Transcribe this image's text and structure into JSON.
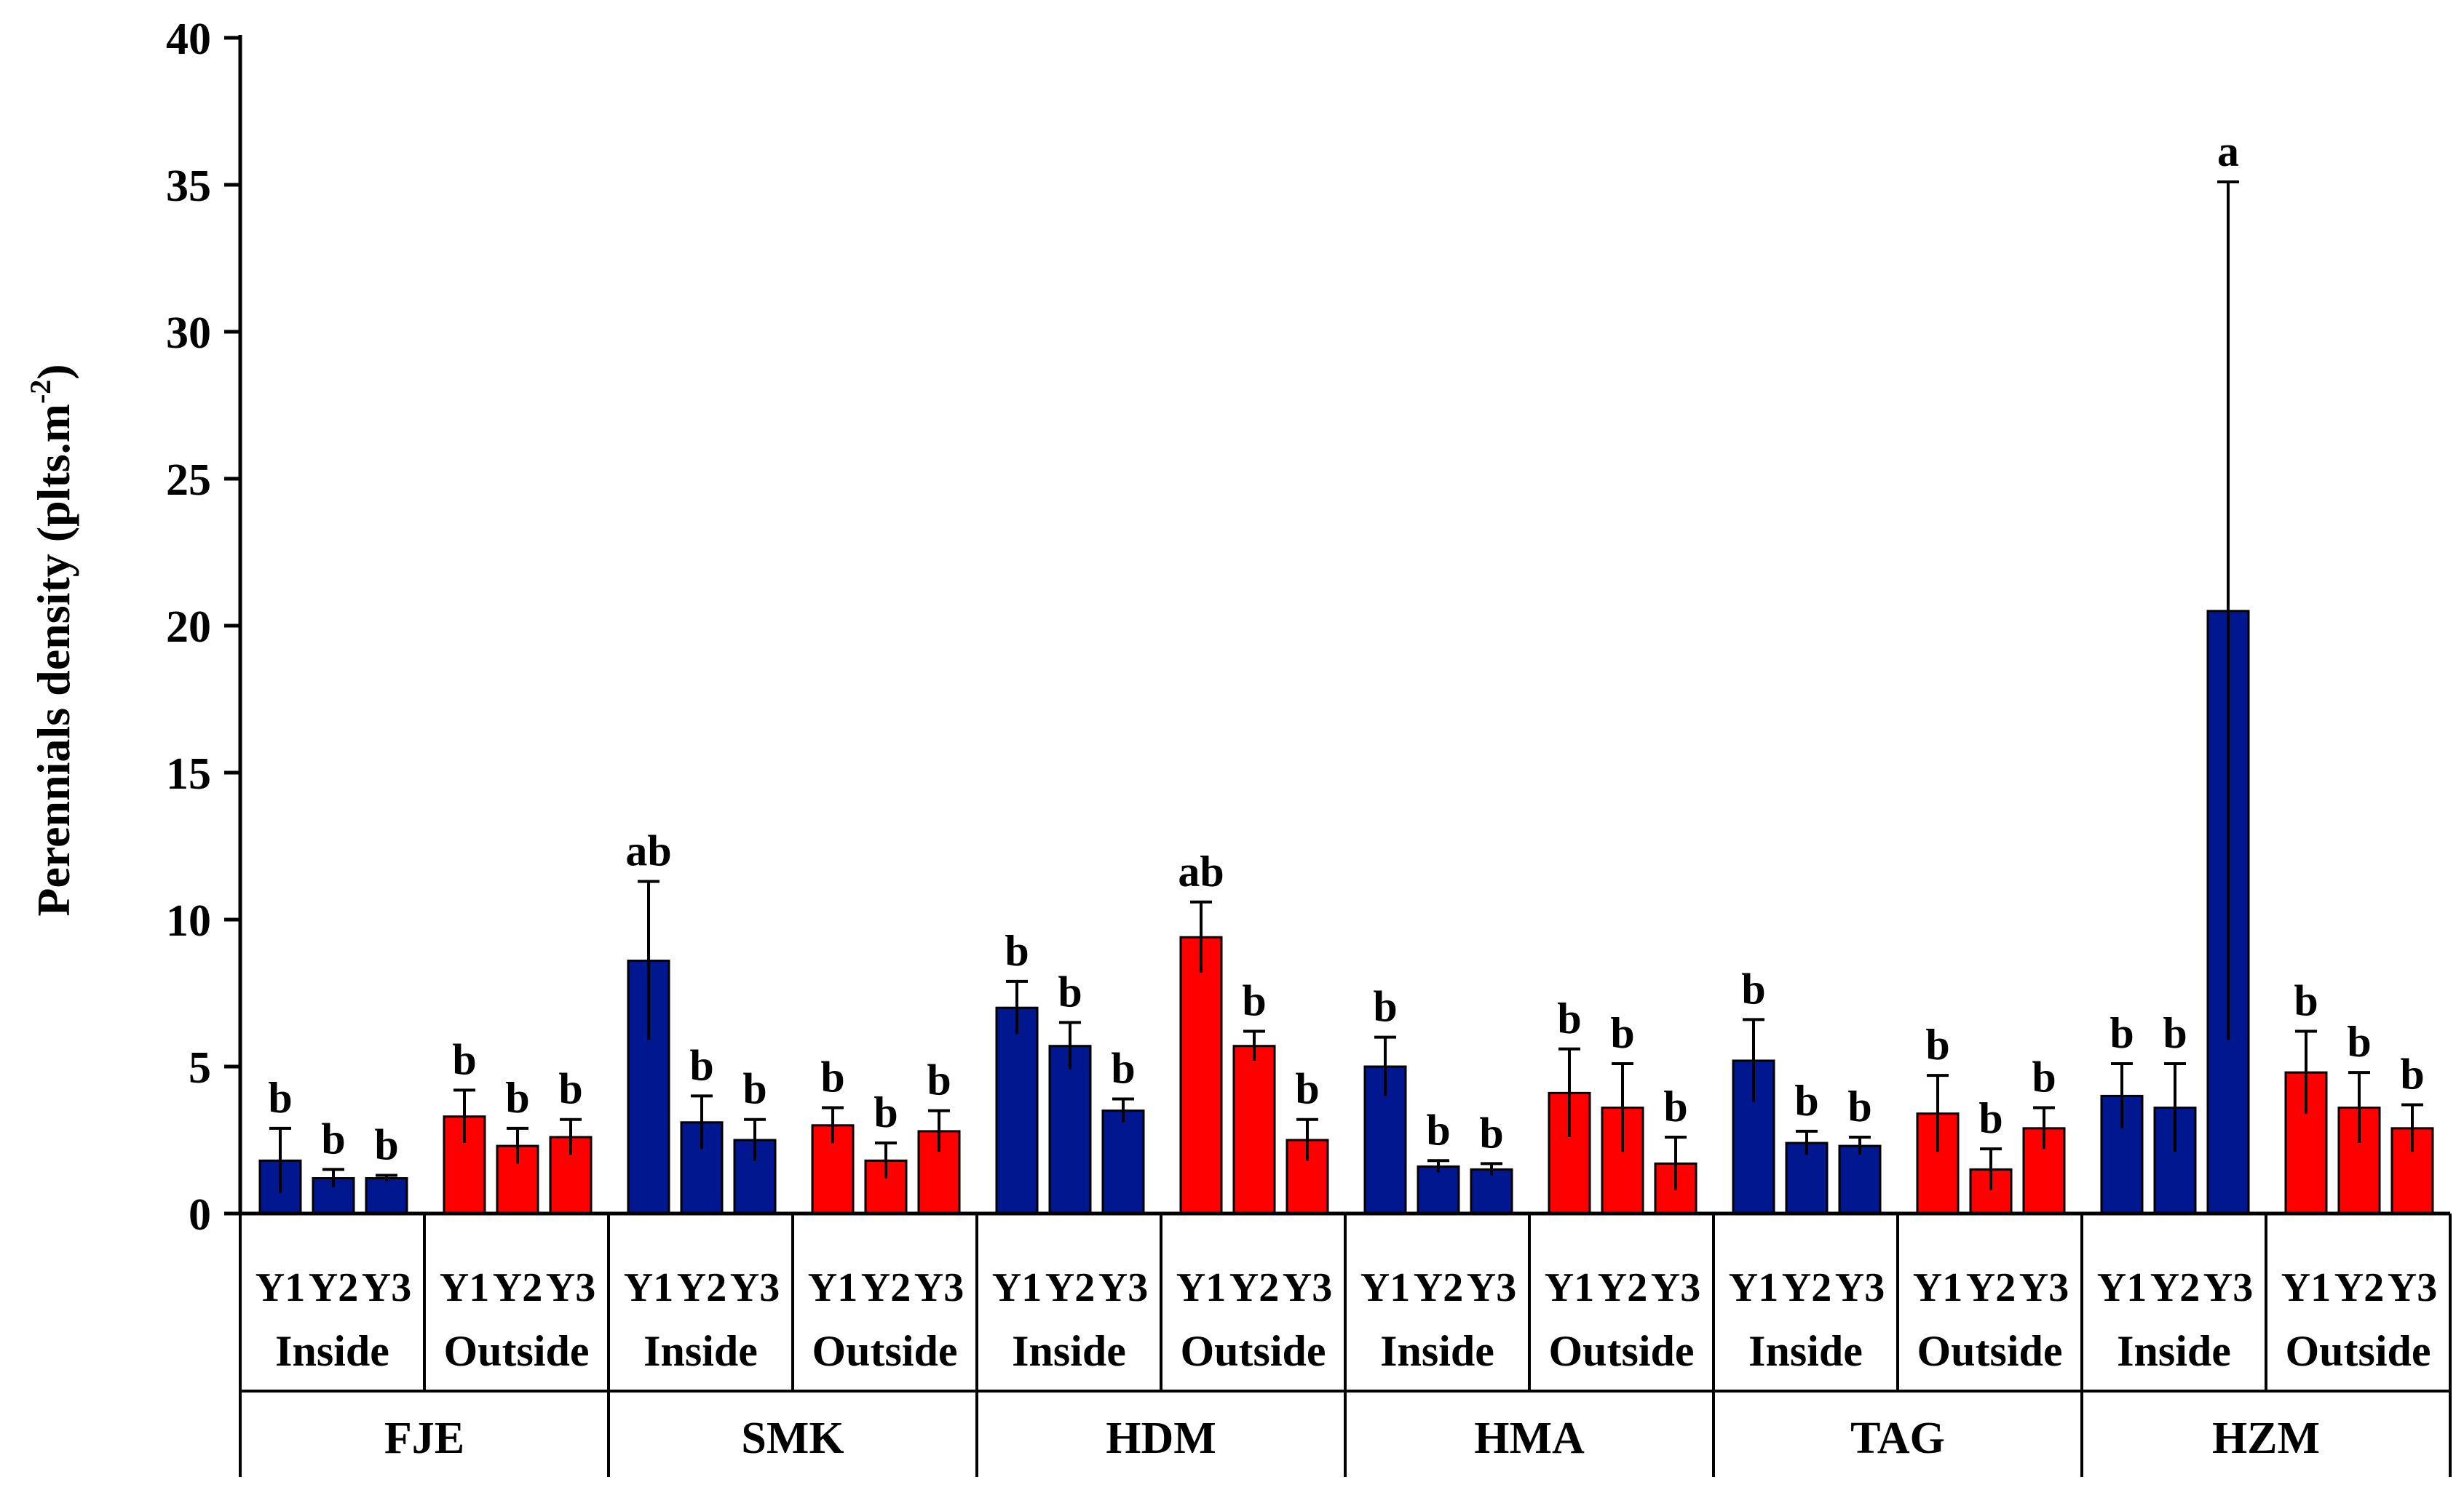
{
  "colors": {
    "inside": "#00178f",
    "outside": "#ff0000",
    "axis": "#000000",
    "error": "#000000"
  },
  "chart_data": {
    "type": "bar",
    "ylabel": "Perennials density (plts.m",
    "ylabel_sup": "-2",
    "ylabel_close": ")",
    "ylim": [
      0,
      40
    ],
    "yticks": [
      "0",
      "5",
      "10",
      "15",
      "20",
      "25",
      "30",
      "35",
      "40"
    ],
    "groups": [
      {
        "name": "FJE",
        "subgroups": [
          {
            "name": "Inside",
            "bars": [
              {
                "year": "Y1",
                "value": 1.8,
                "err": 1.1,
                "letter": "b"
              },
              {
                "year": "Y2",
                "value": 1.2,
                "err": 0.3,
                "letter": "b"
              },
              {
                "year": "Y3",
                "value": 1.2,
                "err": 0.1,
                "letter": "b"
              }
            ]
          },
          {
            "name": "Outside",
            "bars": [
              {
                "year": "Y1",
                "value": 3.3,
                "err": 0.9,
                "letter": "b"
              },
              {
                "year": "Y2",
                "value": 2.3,
                "err": 0.6,
                "letter": "b"
              },
              {
                "year": "Y3",
                "value": 2.6,
                "err": 0.6,
                "letter": "b"
              }
            ]
          }
        ]
      },
      {
        "name": "SMK",
        "subgroups": [
          {
            "name": "Inside",
            "bars": [
              {
                "year": "Y1",
                "value": 8.6,
                "err": 2.7,
                "letter": "ab"
              },
              {
                "year": "Y2",
                "value": 3.1,
                "err": 0.9,
                "letter": "b"
              },
              {
                "year": "Y3",
                "value": 2.5,
                "err": 0.7,
                "letter": "b"
              }
            ]
          },
          {
            "name": "Outside",
            "bars": [
              {
                "year": "Y1",
                "value": 3.0,
                "err": 0.6,
                "letter": "b"
              },
              {
                "year": "Y2",
                "value": 1.8,
                "err": 0.6,
                "letter": "b"
              },
              {
                "year": "Y3",
                "value": 2.8,
                "err": 0.7,
                "letter": "b"
              }
            ]
          }
        ]
      },
      {
        "name": "HDM",
        "subgroups": [
          {
            "name": "Inside",
            "bars": [
              {
                "year": "Y1",
                "value": 7.0,
                "err": 0.9,
                "letter": "b"
              },
              {
                "year": "Y2",
                "value": 5.7,
                "err": 0.8,
                "letter": "b"
              },
              {
                "year": "Y3",
                "value": 3.5,
                "err": 0.4,
                "letter": "b"
              }
            ]
          },
          {
            "name": "Outside",
            "bars": [
              {
                "year": "Y1",
                "value": 9.4,
                "err": 1.2,
                "letter": "ab"
              },
              {
                "year": "Y2",
                "value": 5.7,
                "err": 0.5,
                "letter": "b"
              },
              {
                "year": "Y3",
                "value": 2.5,
                "err": 0.7,
                "letter": "b"
              }
            ]
          }
        ]
      },
      {
        "name": "HMA",
        "subgroups": [
          {
            "name": "Inside",
            "bars": [
              {
                "year": "Y1",
                "value": 5.0,
                "err": 1.0,
                "letter": "b"
              },
              {
                "year": "Y2",
                "value": 1.6,
                "err": 0.2,
                "letter": "b"
              },
              {
                "year": "Y3",
                "value": 1.5,
                "err": 0.2,
                "letter": "b"
              }
            ]
          },
          {
            "name": "Outside",
            "bars": [
              {
                "year": "Y1",
                "value": 4.1,
                "err": 1.5,
                "letter": "b"
              },
              {
                "year": "Y2",
                "value": 3.6,
                "err": 1.5,
                "letter": "b"
              },
              {
                "year": "Y3",
                "value": 1.7,
                "err": 0.9,
                "letter": "b"
              }
            ]
          }
        ]
      },
      {
        "name": "TAG",
        "subgroups": [
          {
            "name": "Inside",
            "bars": [
              {
                "year": "Y1",
                "value": 5.2,
                "err": 1.4,
                "letter": "b"
              },
              {
                "year": "Y2",
                "value": 2.4,
                "err": 0.4,
                "letter": "b"
              },
              {
                "year": "Y3",
                "value": 2.3,
                "err": 0.3,
                "letter": "b"
              }
            ]
          },
          {
            "name": "Outside",
            "bars": [
              {
                "year": "Y1",
                "value": 3.4,
                "err": 1.3,
                "letter": "b"
              },
              {
                "year": "Y2",
                "value": 1.5,
                "err": 0.7,
                "letter": "b"
              },
              {
                "year": "Y3",
                "value": 2.9,
                "err": 0.7,
                "letter": "b"
              }
            ]
          }
        ]
      },
      {
        "name": "HZM",
        "subgroups": [
          {
            "name": "Inside",
            "bars": [
              {
                "year": "Y1",
                "value": 4.0,
                "err": 1.1,
                "letter": "b"
              },
              {
                "year": "Y2",
                "value": 3.6,
                "err": 1.5,
                "letter": "b"
              },
              {
                "year": "Y3",
                "value": 20.5,
                "err": 14.6,
                "letter": "a"
              }
            ]
          },
          {
            "name": "Outside",
            "bars": [
              {
                "year": "Y1",
                "value": 4.8,
                "err": 1.4,
                "letter": "b"
              },
              {
                "year": "Y2",
                "value": 3.6,
                "err": 1.2,
                "letter": "b"
              },
              {
                "year": "Y3",
                "value": 2.9,
                "err": 0.8,
                "letter": "b"
              }
            ]
          }
        ]
      }
    ]
  }
}
